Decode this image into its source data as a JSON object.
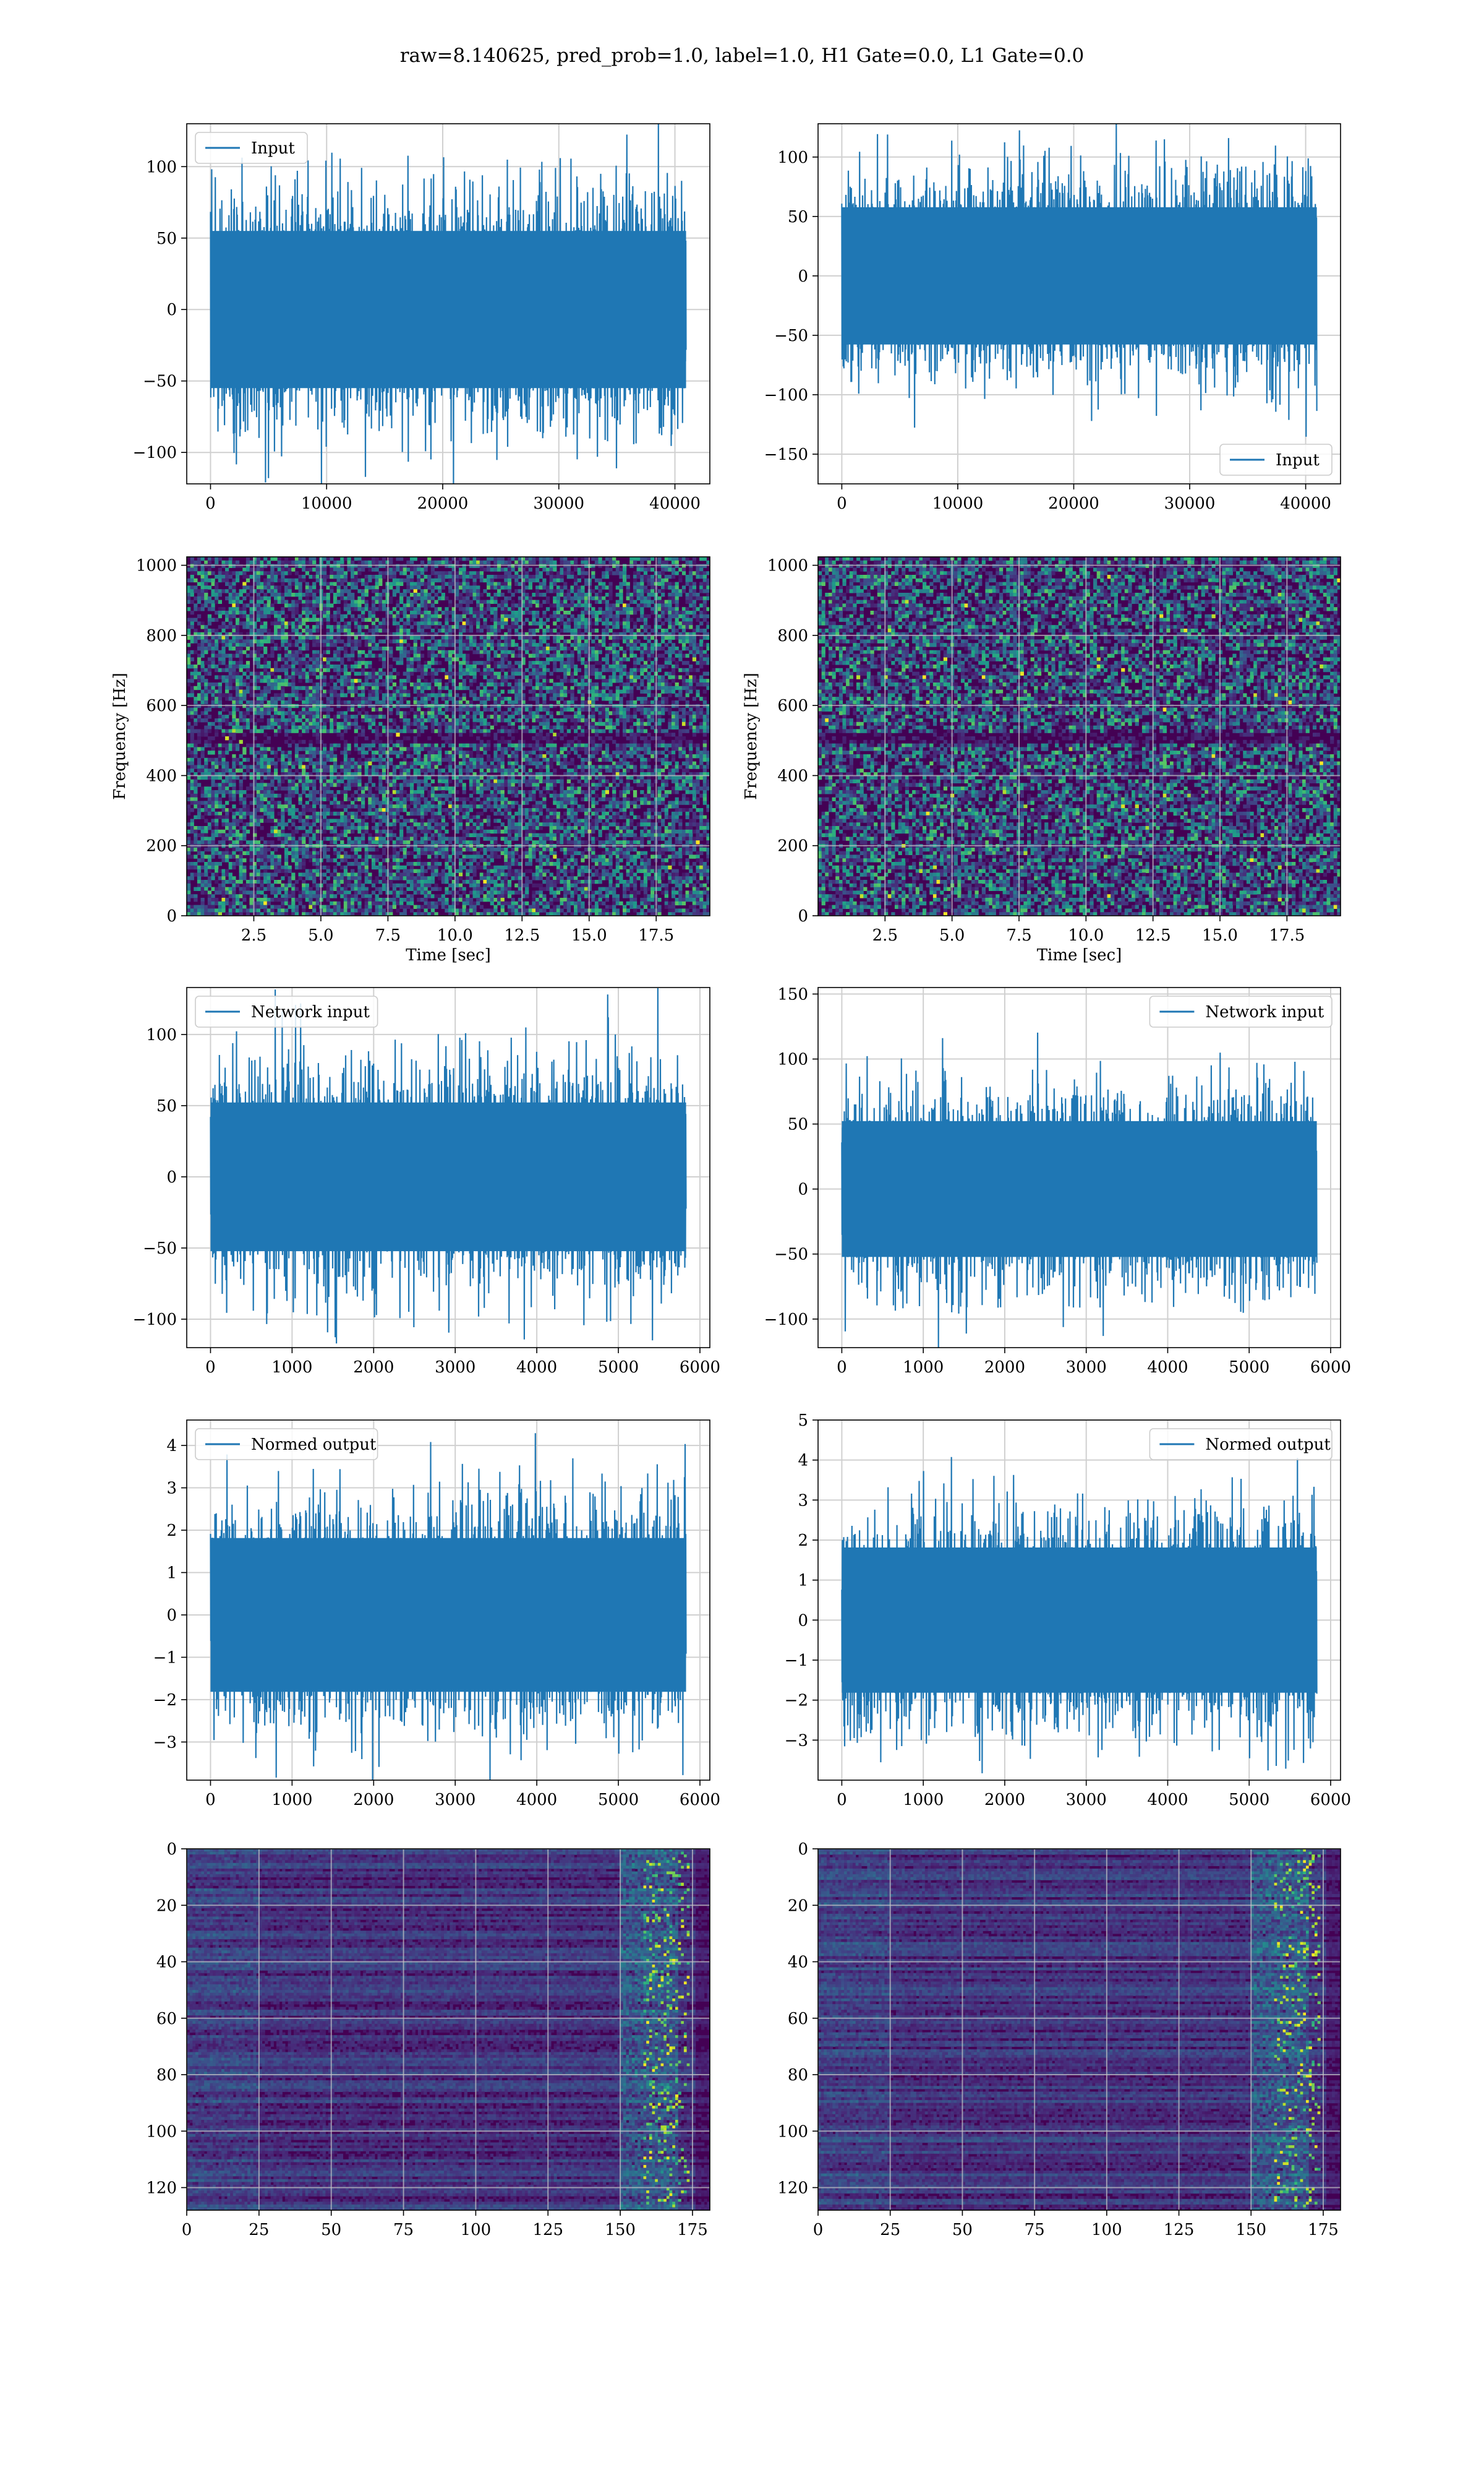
{
  "figure": {
    "title": "raw=8.140625, pred_prob=1.0, label=1.0, H1 Gate=0.0, L1 Gate=0.0"
  },
  "colors": {
    "line": "#1f77b4",
    "grid": "#d0d0d0",
    "viridis_low": "#440154",
    "viridis_mid": "#21918c",
    "viridis_high": "#fde725"
  },
  "chart_data": [
    {
      "id": "input-h1",
      "type": "line",
      "panel": "left",
      "row": 0,
      "legend": "Input",
      "legend_loc": "top-left",
      "x_range": [
        0,
        40960
      ],
      "ylim": [
        -122,
        130
      ],
      "amplitude": 100,
      "n": 1600,
      "xticks": [
        0,
        10000,
        20000,
        30000,
        40000
      ],
      "xtick_labels": [
        "0",
        "10000",
        "20000",
        "30000",
        "40000"
      ],
      "yticks": [
        -100,
        -50,
        0,
        50,
        100
      ],
      "ytick_labels": [
        "−100",
        "−50",
        "0",
        "50",
        "100"
      ],
      "xlabel": "",
      "ylabel": "",
      "grid": true
    },
    {
      "id": "input-l1",
      "type": "line",
      "panel": "right",
      "row": 0,
      "legend": "Input",
      "legend_loc": "bottom-right",
      "x_range": [
        0,
        40960
      ],
      "ylim": [
        -175,
        128
      ],
      "amplitude": 105,
      "n": 1600,
      "xticks": [
        0,
        10000,
        20000,
        30000,
        40000
      ],
      "xtick_labels": [
        "0",
        "10000",
        "20000",
        "30000",
        "40000"
      ],
      "yticks": [
        -150,
        -100,
        -50,
        0,
        50,
        100
      ],
      "ytick_labels": [
        "−150",
        "−100",
        "−50",
        "0",
        "50",
        "100"
      ],
      "xlabel": "",
      "ylabel": "",
      "grid": true
    },
    {
      "id": "spectrogram-h1",
      "type": "heatmap",
      "panel": "left",
      "row": 1,
      "x_range": [
        0,
        19.5
      ],
      "ylim": [
        0,
        1024
      ],
      "xticks": [
        2.5,
        5.0,
        7.5,
        10.0,
        12.5,
        15.0,
        17.5
      ],
      "xtick_labels": [
        "2.5",
        "5.0",
        "7.5",
        "10.0",
        "12.5",
        "15.0",
        "17.5"
      ],
      "yticks": [
        0,
        200,
        400,
        600,
        800,
        1000
      ],
      "ytick_labels": [
        "0",
        "200",
        "400",
        "600",
        "800",
        "1000"
      ],
      "xlabel": "Time [sec]",
      "ylabel": "Frequency [Hz]",
      "grid": true
    },
    {
      "id": "spectrogram-l1",
      "type": "heatmap",
      "panel": "right",
      "row": 1,
      "x_range": [
        0,
        19.5
      ],
      "ylim": [
        0,
        1024
      ],
      "xticks": [
        2.5,
        5.0,
        7.5,
        10.0,
        12.5,
        15.0,
        17.5
      ],
      "xtick_labels": [
        "2.5",
        "5.0",
        "7.5",
        "10.0",
        "12.5",
        "15.0",
        "17.5"
      ],
      "yticks": [
        0,
        200,
        400,
        600,
        800,
        1000
      ],
      "ytick_labels": [
        "0",
        "200",
        "400",
        "600",
        "800",
        "1000"
      ],
      "xlabel": "Time [sec]",
      "ylabel": "Frequency [Hz]",
      "grid": true
    },
    {
      "id": "network-input-h1",
      "type": "line",
      "panel": "left",
      "row": 2,
      "legend": "Network input",
      "legend_loc": "top-left",
      "x_range": [
        0,
        5830
      ],
      "ylim": [
        -120,
        133
      ],
      "amplitude": 95,
      "n": 1500,
      "xticks": [
        0,
        1000,
        2000,
        3000,
        4000,
        5000,
        6000
      ],
      "xtick_labels": [
        "0",
        "1000",
        "2000",
        "3000",
        "4000",
        "5000",
        "6000"
      ],
      "yticks": [
        -100,
        -50,
        0,
        50,
        100
      ],
      "ytick_labels": [
        "−100",
        "−50",
        "0",
        "50",
        "100"
      ],
      "xlabel": "",
      "ylabel": "",
      "grid": true
    },
    {
      "id": "network-input-l1",
      "type": "line",
      "panel": "right",
      "row": 2,
      "legend": "Network input",
      "legend_loc": "top-right",
      "x_range": [
        0,
        5830
      ],
      "ylim": [
        -122,
        155
      ],
      "amplitude": 95,
      "n": 1500,
      "xticks": [
        0,
        1000,
        2000,
        3000,
        4000,
        5000,
        6000
      ],
      "xtick_labels": [
        "0",
        "1000",
        "2000",
        "3000",
        "4000",
        "5000",
        "6000"
      ],
      "yticks": [
        -100,
        -50,
        0,
        50,
        100,
        150
      ],
      "ytick_labels": [
        "−100",
        "−50",
        "0",
        "50",
        "100",
        "150"
      ],
      "xlabel": "",
      "ylabel": "",
      "grid": true
    },
    {
      "id": "normed-output-h1",
      "type": "line",
      "panel": "left",
      "row": 3,
      "legend": "Normed output",
      "legend_loc": "top-left",
      "x_range": [
        0,
        5830
      ],
      "ylim": [
        -3.9,
        4.6
      ],
      "amplitude": 3.3,
      "n": 1500,
      "xticks": [
        0,
        1000,
        2000,
        3000,
        4000,
        5000,
        6000
      ],
      "xtick_labels": [
        "0",
        "1000",
        "2000",
        "3000",
        "4000",
        "5000",
        "6000"
      ],
      "yticks": [
        -3,
        -2,
        -1,
        0,
        1,
        2,
        3,
        4
      ],
      "ytick_labels": [
        "−3",
        "−2",
        "−1",
        "0",
        "1",
        "2",
        "3",
        "4"
      ],
      "xlabel": "",
      "ylabel": "",
      "grid": true
    },
    {
      "id": "normed-output-l1",
      "type": "line",
      "panel": "right",
      "row": 3,
      "legend": "Normed output",
      "legend_loc": "top-right",
      "x_range": [
        0,
        5830
      ],
      "ylim": [
        -4.0,
        5.0
      ],
      "amplitude": 3.3,
      "n": 1500,
      "xticks": [
        0,
        1000,
        2000,
        3000,
        4000,
        5000,
        6000
      ],
      "xtick_labels": [
        "0",
        "1000",
        "2000",
        "3000",
        "4000",
        "5000",
        "6000"
      ],
      "yticks": [
        -3,
        -2,
        -1,
        0,
        1,
        2,
        3,
        4,
        5
      ],
      "ytick_labels": [
        "−3",
        "−2",
        "−1",
        "0",
        "1",
        "2",
        "3",
        "4",
        "5"
      ],
      "xlabel": "",
      "ylabel": "",
      "grid": true
    },
    {
      "id": "feature-map-h1",
      "type": "heatmap",
      "panel": "left",
      "row": 4,
      "x_range": [
        0,
        181
      ],
      "ylim": [
        128,
        0
      ],
      "xticks": [
        0,
        25,
        50,
        75,
        100,
        125,
        150,
        175
      ],
      "xtick_labels": [
        "0",
        "25",
        "50",
        "75",
        "100",
        "125",
        "150",
        "175"
      ],
      "yticks": [
        0,
        20,
        40,
        60,
        80,
        100,
        120
      ],
      "ytick_labels": [
        "0",
        "20",
        "40",
        "60",
        "80",
        "100",
        "120"
      ],
      "xlabel": "",
      "ylabel": "",
      "grid": true
    },
    {
      "id": "feature-map-l1",
      "type": "heatmap",
      "panel": "right",
      "row": 4,
      "x_range": [
        0,
        181
      ],
      "ylim": [
        128,
        0
      ],
      "xticks": [
        0,
        25,
        50,
        75,
        100,
        125,
        150,
        175
      ],
      "xtick_labels": [
        "0",
        "25",
        "50",
        "75",
        "100",
        "125",
        "150",
        "175"
      ],
      "yticks": [
        0,
        20,
        40,
        60,
        80,
        100,
        120
      ],
      "ytick_labels": [
        "0",
        "20",
        "40",
        "60",
        "80",
        "100",
        "120"
      ],
      "xlabel": "",
      "ylabel": "",
      "grid": true
    }
  ]
}
